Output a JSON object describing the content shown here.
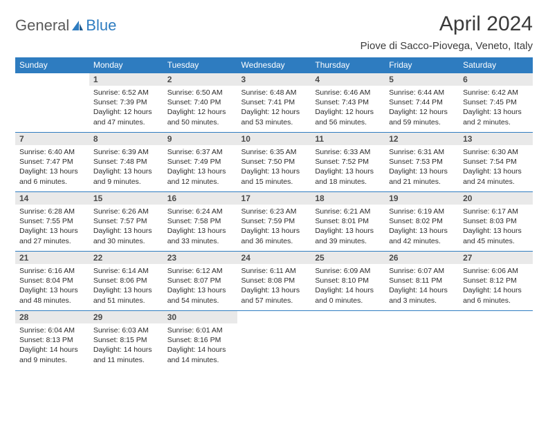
{
  "logo": {
    "part1": "General",
    "part2": "Blue"
  },
  "title": "April 2024",
  "location": "Piove di Sacco-Piovega, Veneto, Italy",
  "colors": {
    "header_bg": "#2e7cc0",
    "header_text": "#ffffff",
    "daynum_bg": "#e9e9e9",
    "cell_border": "#2e7cc0",
    "body_text": "#2b2b2b",
    "logo_gray": "#5a5a5a",
    "logo_blue": "#2e7cc0"
  },
  "weekdays": [
    "Sunday",
    "Monday",
    "Tuesday",
    "Wednesday",
    "Thursday",
    "Friday",
    "Saturday"
  ],
  "weeks": [
    [
      {
        "day": "",
        "lines": []
      },
      {
        "day": "1",
        "lines": [
          "Sunrise: 6:52 AM",
          "Sunset: 7:39 PM",
          "Daylight: 12 hours and 47 minutes."
        ]
      },
      {
        "day": "2",
        "lines": [
          "Sunrise: 6:50 AM",
          "Sunset: 7:40 PM",
          "Daylight: 12 hours and 50 minutes."
        ]
      },
      {
        "day": "3",
        "lines": [
          "Sunrise: 6:48 AM",
          "Sunset: 7:41 PM",
          "Daylight: 12 hours and 53 minutes."
        ]
      },
      {
        "day": "4",
        "lines": [
          "Sunrise: 6:46 AM",
          "Sunset: 7:43 PM",
          "Daylight: 12 hours and 56 minutes."
        ]
      },
      {
        "day": "5",
        "lines": [
          "Sunrise: 6:44 AM",
          "Sunset: 7:44 PM",
          "Daylight: 12 hours and 59 minutes."
        ]
      },
      {
        "day": "6",
        "lines": [
          "Sunrise: 6:42 AM",
          "Sunset: 7:45 PM",
          "Daylight: 13 hours and 2 minutes."
        ]
      }
    ],
    [
      {
        "day": "7",
        "lines": [
          "Sunrise: 6:40 AM",
          "Sunset: 7:47 PM",
          "Daylight: 13 hours and 6 minutes."
        ]
      },
      {
        "day": "8",
        "lines": [
          "Sunrise: 6:39 AM",
          "Sunset: 7:48 PM",
          "Daylight: 13 hours and 9 minutes."
        ]
      },
      {
        "day": "9",
        "lines": [
          "Sunrise: 6:37 AM",
          "Sunset: 7:49 PM",
          "Daylight: 13 hours and 12 minutes."
        ]
      },
      {
        "day": "10",
        "lines": [
          "Sunrise: 6:35 AM",
          "Sunset: 7:50 PM",
          "Daylight: 13 hours and 15 minutes."
        ]
      },
      {
        "day": "11",
        "lines": [
          "Sunrise: 6:33 AM",
          "Sunset: 7:52 PM",
          "Daylight: 13 hours and 18 minutes."
        ]
      },
      {
        "day": "12",
        "lines": [
          "Sunrise: 6:31 AM",
          "Sunset: 7:53 PM",
          "Daylight: 13 hours and 21 minutes."
        ]
      },
      {
        "day": "13",
        "lines": [
          "Sunrise: 6:30 AM",
          "Sunset: 7:54 PM",
          "Daylight: 13 hours and 24 minutes."
        ]
      }
    ],
    [
      {
        "day": "14",
        "lines": [
          "Sunrise: 6:28 AM",
          "Sunset: 7:55 PM",
          "Daylight: 13 hours and 27 minutes."
        ]
      },
      {
        "day": "15",
        "lines": [
          "Sunrise: 6:26 AM",
          "Sunset: 7:57 PM",
          "Daylight: 13 hours and 30 minutes."
        ]
      },
      {
        "day": "16",
        "lines": [
          "Sunrise: 6:24 AM",
          "Sunset: 7:58 PM",
          "Daylight: 13 hours and 33 minutes."
        ]
      },
      {
        "day": "17",
        "lines": [
          "Sunrise: 6:23 AM",
          "Sunset: 7:59 PM",
          "Daylight: 13 hours and 36 minutes."
        ]
      },
      {
        "day": "18",
        "lines": [
          "Sunrise: 6:21 AM",
          "Sunset: 8:01 PM",
          "Daylight: 13 hours and 39 minutes."
        ]
      },
      {
        "day": "19",
        "lines": [
          "Sunrise: 6:19 AM",
          "Sunset: 8:02 PM",
          "Daylight: 13 hours and 42 minutes."
        ]
      },
      {
        "day": "20",
        "lines": [
          "Sunrise: 6:17 AM",
          "Sunset: 8:03 PM",
          "Daylight: 13 hours and 45 minutes."
        ]
      }
    ],
    [
      {
        "day": "21",
        "lines": [
          "Sunrise: 6:16 AM",
          "Sunset: 8:04 PM",
          "Daylight: 13 hours and 48 minutes."
        ]
      },
      {
        "day": "22",
        "lines": [
          "Sunrise: 6:14 AM",
          "Sunset: 8:06 PM",
          "Daylight: 13 hours and 51 minutes."
        ]
      },
      {
        "day": "23",
        "lines": [
          "Sunrise: 6:12 AM",
          "Sunset: 8:07 PM",
          "Daylight: 13 hours and 54 minutes."
        ]
      },
      {
        "day": "24",
        "lines": [
          "Sunrise: 6:11 AM",
          "Sunset: 8:08 PM",
          "Daylight: 13 hours and 57 minutes."
        ]
      },
      {
        "day": "25",
        "lines": [
          "Sunrise: 6:09 AM",
          "Sunset: 8:10 PM",
          "Daylight: 14 hours and 0 minutes."
        ]
      },
      {
        "day": "26",
        "lines": [
          "Sunrise: 6:07 AM",
          "Sunset: 8:11 PM",
          "Daylight: 14 hours and 3 minutes."
        ]
      },
      {
        "day": "27",
        "lines": [
          "Sunrise: 6:06 AM",
          "Sunset: 8:12 PM",
          "Daylight: 14 hours and 6 minutes."
        ]
      }
    ],
    [
      {
        "day": "28",
        "lines": [
          "Sunrise: 6:04 AM",
          "Sunset: 8:13 PM",
          "Daylight: 14 hours and 9 minutes."
        ]
      },
      {
        "day": "29",
        "lines": [
          "Sunrise: 6:03 AM",
          "Sunset: 8:15 PM",
          "Daylight: 14 hours and 11 minutes."
        ]
      },
      {
        "day": "30",
        "lines": [
          "Sunrise: 6:01 AM",
          "Sunset: 8:16 PM",
          "Daylight: 14 hours and 14 minutes."
        ]
      },
      {
        "day": "",
        "lines": []
      },
      {
        "day": "",
        "lines": []
      },
      {
        "day": "",
        "lines": []
      },
      {
        "day": "",
        "lines": []
      }
    ]
  ]
}
